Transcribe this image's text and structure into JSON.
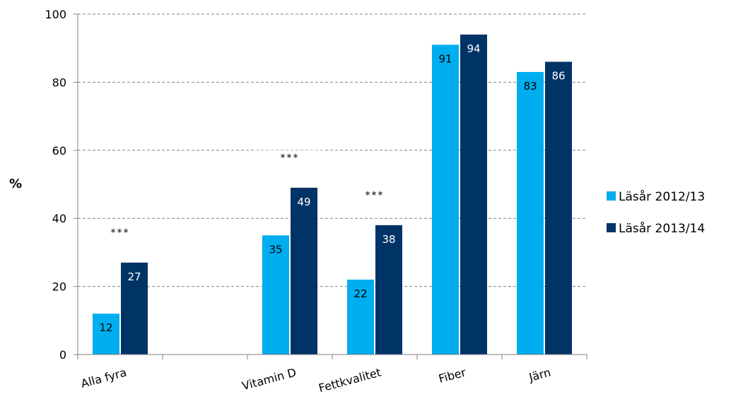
{
  "chart_data": {
    "type": "bar",
    "categories": [
      "Alla fyra",
      "",
      "Vitamin D",
      "Fettkvalitet",
      "Fiber",
      "Järn"
    ],
    "series": [
      {
        "name": "Läsår 2012/13",
        "values": [
          12,
          null,
          35,
          22,
          91,
          83
        ],
        "color": "#00adef"
      },
      {
        "name": "Läsår 2013/14",
        "values": [
          27,
          null,
          49,
          38,
          94,
          86
        ],
        "color": "#003366"
      }
    ],
    "data_labels": [
      [
        "12",
        "",
        "35",
        "22",
        "91",
        "83"
      ],
      [
        "27",
        "",
        "49",
        "38",
        "94",
        "86"
      ]
    ],
    "annotations": [
      "***",
      "",
      "***",
      "***",
      "",
      ""
    ],
    "xlabel": "",
    "ylabel": "%",
    "ylim": [
      0,
      100
    ],
    "yticks": [
      0,
      20,
      40,
      60,
      80,
      100
    ],
    "grid": true,
    "legend_position": "right"
  }
}
